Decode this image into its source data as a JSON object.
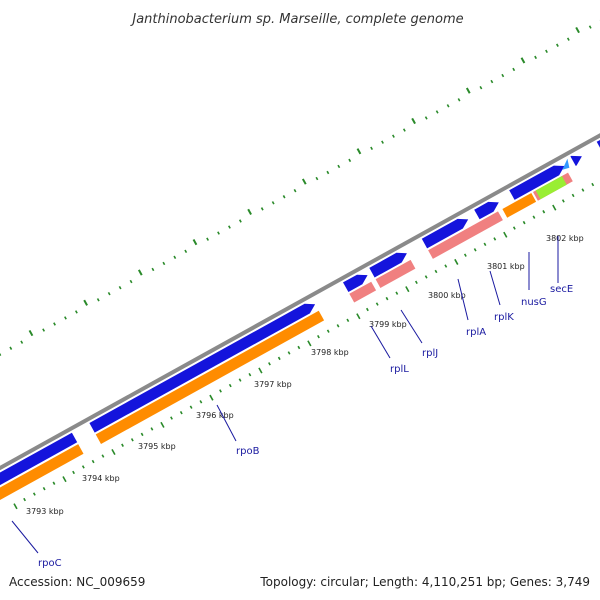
{
  "title": "Janthinobacterium sp. Marseille, complete genome",
  "footer": {
    "accession": "Accession: NC_009659",
    "summary": "Topology: circular; Length: 4,110,251 bp; Genes: 3,749"
  },
  "colors": {
    "backbone": "#8a8a8a",
    "cds_forward": "#1414dc",
    "gene_forward": "#ff8c00",
    "rrna_like": "#f08080",
    "highlight": "#99ee33",
    "small_feature": "#3399ff",
    "tick": "#2a8a2a",
    "label": "#1a1aa0"
  },
  "kbp_ticks": [
    "3793 kbp",
    "3794 kbp",
    "3795 kbp",
    "3796 kbp",
    "3797 kbp",
    "3798 kbp",
    "3799 kbp",
    "3800 kbp",
    "3801 kbp",
    "3802 kbp"
  ],
  "genes": [
    "rpoC",
    "rpoB",
    "rplL",
    "rplJ",
    "rplA",
    "rplK",
    "nusG",
    "secE"
  ]
}
